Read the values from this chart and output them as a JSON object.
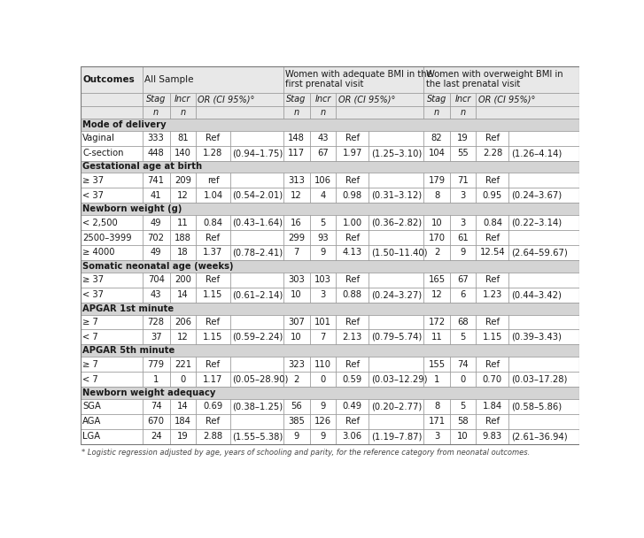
{
  "footnote": "* Logistic regression adjusted by age, years of schooling and parity, for the reference category from neonatal outcomes.",
  "sections": [
    {
      "section_label": "Mode of delivery",
      "rows": [
        [
          "Vaginal",
          "333",
          "81",
          "Ref",
          "",
          "148",
          "43",
          "Ref",
          "",
          "82",
          "19",
          "Ref",
          ""
        ],
        [
          "C-section",
          "448",
          "140",
          "1.28",
          "(0.94–1.75)",
          "117",
          "67",
          "1.97",
          "(1.25–3.10)",
          "104",
          "55",
          "2.28",
          "(1.26–4.14)"
        ]
      ]
    },
    {
      "section_label": "Gestational age at birth",
      "rows": [
        [
          "≥ 37",
          "741",
          "209",
          "ref",
          "",
          "313",
          "106",
          "Ref",
          "",
          "179",
          "71",
          "Ref",
          ""
        ],
        [
          "< 37",
          "41",
          "12",
          "1.04",
          "(0.54–2.01)",
          "12",
          "4",
          "0.98",
          "(0.31–3.12)",
          "8",
          "3",
          "0.95",
          "(0.24–3.67)"
        ]
      ]
    },
    {
      "section_label": "Newborn weight (g)",
      "rows": [
        [
          "< 2,500",
          "49",
          "11",
          "0.84",
          "(0.43–1.64)",
          "16",
          "5",
          "1.00",
          "(0.36–2.82)",
          "10",
          "3",
          "0.84",
          "(0.22–3.14)"
        ],
        [
          "2500–3999",
          "702",
          "188",
          "Ref",
          "",
          "299",
          "93",
          "Ref",
          "",
          "170",
          "61",
          "Ref",
          ""
        ],
        [
          "≥ 4000",
          "49",
          "18",
          "1.37",
          "(0.78–2.41)",
          "7",
          "9",
          "4.13",
          "(1.50–11.40)",
          "2",
          "9",
          "12.54",
          "(2.64–59.67)"
        ]
      ]
    },
    {
      "section_label": "Somatic neonatal age (weeks)",
      "rows": [
        [
          "≥ 37",
          "704",
          "200",
          "Ref",
          "",
          "303",
          "103",
          "Ref",
          "",
          "165",
          "67",
          "Ref",
          ""
        ],
        [
          "< 37",
          "43",
          "14",
          "1.15",
          "(0.61–2.14)",
          "10",
          "3",
          "0.88",
          "(0.24–3.27)",
          "12",
          "6",
          "1.23",
          "(0.44–3.42)"
        ]
      ]
    },
    {
      "section_label": "APGAR 1st minute",
      "rows": [
        [
          "≥ 7",
          "728",
          "206",
          "Ref",
          "",
          "307",
          "101",
          "Ref",
          "",
          "172",
          "68",
          "Ref",
          ""
        ],
        [
          "< 7",
          "37",
          "12",
          "1.15",
          "(0.59–2.24)",
          "10",
          "7",
          "2.13",
          "(0.79–5.74)",
          "11",
          "5",
          "1.15",
          "(0.39–3.43)"
        ]
      ]
    },
    {
      "section_label": "APGAR 5th minute",
      "rows": [
        [
          "≥ 7",
          "779",
          "221",
          "Ref",
          "",
          "323",
          "110",
          "Ref",
          "",
          "155",
          "74",
          "Ref",
          ""
        ],
        [
          "< 7",
          "1",
          "0",
          "1.17",
          "(0.05–28.90)",
          "2",
          "0",
          "0.59",
          "(0.03–12.29)",
          "1",
          "0",
          "0.70",
          "(0.03–17.28)"
        ]
      ]
    },
    {
      "section_label": "Newborn weight adequacy",
      "rows": [
        [
          "SGA",
          "74",
          "14",
          "0.69",
          "(0.38–1.25)",
          "56",
          "9",
          "0.49",
          "(0.20–2.77)",
          "8",
          "5",
          "1.84",
          "(0.58–5.86)"
        ],
        [
          "AGA",
          "670",
          "184",
          "Ref",
          "",
          "385",
          "126",
          "Ref",
          "",
          "171",
          "58",
          "Ref",
          ""
        ],
        [
          "LGA",
          "24",
          "19",
          "2.88",
          "(1.55–5.38)",
          "9",
          "9",
          "3.06",
          "(1.19–7.87)",
          "3",
          "10",
          "9.83",
          "(2.61–36.94)"
        ]
      ]
    }
  ],
  "bg_header": "#e8e8e8",
  "bg_section": "#d4d4d4",
  "bg_white": "#ffffff",
  "text_color": "#1a1a1a",
  "border_color": "#999999",
  "font_size": 7.2,
  "header_font_size": 7.5
}
